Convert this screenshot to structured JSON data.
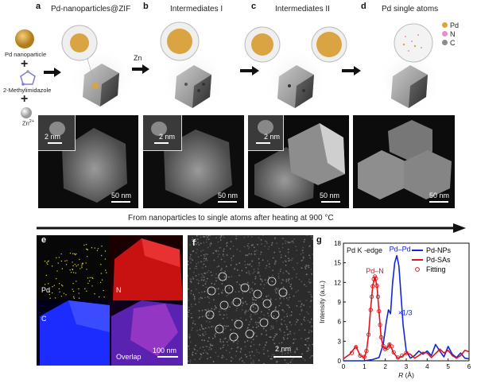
{
  "panels": {
    "a": {
      "letter": "a",
      "title": "Pd-nanoparticles@ZIF"
    },
    "b": {
      "letter": "b",
      "title": "Intermediates I"
    },
    "c": {
      "letter": "c",
      "title": "Intermediates II"
    },
    "d": {
      "letter": "d",
      "title": "Pd single atoms"
    },
    "e": {
      "letter": "e"
    },
    "f": {
      "letter": "f"
    },
    "g": {
      "letter": "g"
    }
  },
  "synthesis": {
    "nanoparticle": "Pd nanoparticle",
    "plus": "+",
    "linker": "2-Methylimidazole",
    "zn_ion": "Zn",
    "zn_ion_sup": "2+",
    "zn_label": "Zn"
  },
  "legend_top": [
    {
      "label": "Pd",
      "color": "#d9a441"
    },
    {
      "label": "N",
      "color": "#e88fc6"
    },
    {
      "label": "C",
      "color": "#8c8c8c"
    }
  ],
  "micrographs": {
    "inset_scale": "2 nm",
    "main_scale": "50 nm"
  },
  "arrow_caption": "From nanoparticles to single atoms after heating at 900 °C",
  "eds": {
    "tiles": [
      "Pd",
      "N",
      "C",
      "Overlap"
    ],
    "scale": "100 nm",
    "colors": {
      "Pd": "#d4d23c",
      "N": "#e01616",
      "C": "#1a2cff",
      "Overlap": "#8a3cc0"
    }
  },
  "haadf_scale": "2 nm",
  "chart_data": {
    "type": "line",
    "title": "Pd K -edge",
    "xlabel": "R (Å)",
    "ylabel": "Intensity (a.u.)",
    "xlim": [
      0,
      6
    ],
    "ylim": [
      0,
      18
    ],
    "xticks": [
      "0",
      "1",
      "2",
      "3",
      "4",
      "5",
      "6"
    ],
    "yticks": [
      "0",
      "3",
      "6",
      "9",
      "12",
      "15",
      "18"
    ],
    "annotations": [
      {
        "text": "Pd–Pd",
        "x": 2.7,
        "y": 16.7,
        "color": "#1426d4"
      },
      {
        "text": "Pd–N",
        "x": 1.5,
        "y": 13.4,
        "color": "#e0141c"
      },
      {
        "text": "×1/3",
        "x": 2.95,
        "y": 7.0,
        "color": "#1426d4"
      }
    ],
    "series": [
      {
        "name": "Pd-NPs",
        "color": "#1426d4",
        "style": "line",
        "x": [
          0,
          0.5,
          1.0,
          1.4,
          1.7,
          1.9,
          2.05,
          2.15,
          2.25,
          2.35,
          2.45,
          2.55,
          2.65,
          2.75,
          2.85,
          3.0,
          3.2,
          3.4,
          3.6,
          3.8,
          4.0,
          4.2,
          4.4,
          4.6,
          4.8,
          5.0,
          5.2,
          5.4,
          5.6,
          5.8,
          6.0
        ],
        "y": [
          0,
          0,
          0,
          0.2,
          0.5,
          2.5,
          6.0,
          7.8,
          7.2,
          12.0,
          15.0,
          16.1,
          14.5,
          10.0,
          5.5,
          1.5,
          0.4,
          0.8,
          1.5,
          1.0,
          1.5,
          0.8,
          2.5,
          1.5,
          0.6,
          2.2,
          1.0,
          0.5,
          1.2,
          0.4,
          0.3
        ]
      },
      {
        "name": "Pd-SAs",
        "color": "#e0141c",
        "style": "line",
        "x": [
          0,
          0.3,
          0.6,
          0.8,
          1.0,
          1.1,
          1.2,
          1.3,
          1.4,
          1.5,
          1.6,
          1.7,
          1.8,
          1.9,
          2.0,
          2.1,
          2.2,
          2.4,
          2.6,
          2.8,
          3.0,
          3.2,
          3.4,
          3.6,
          3.8,
          4.0,
          4.2,
          4.4,
          4.6,
          4.8,
          5.0,
          5.2,
          5.4,
          5.6,
          5.8,
          6.0
        ],
        "y": [
          0.3,
          1.0,
          2.2,
          0.8,
          0.5,
          1.5,
          4.0,
          8.0,
          11.5,
          12.9,
          11.5,
          7.5,
          3.5,
          2.2,
          1.8,
          2.0,
          2.6,
          1.2,
          0.4,
          0.7,
          1.2,
          1.0,
          0.4,
          0.8,
          1.3,
          1.2,
          0.5,
          1.1,
          1.8,
          1.2,
          1.6,
          0.8,
          0.4,
          0.8,
          1.6,
          1.4
        ]
      },
      {
        "name": "Fitting",
        "color": "#e0141c",
        "style": "markers",
        "x": [
          0.4,
          0.6,
          0.8,
          1.0,
          1.1,
          1.2,
          1.3,
          1.35,
          1.4,
          1.45,
          1.5,
          1.55,
          1.6,
          1.65,
          1.7,
          1.75,
          1.8,
          1.9,
          2.0,
          2.1,
          2.2,
          2.3,
          2.4,
          2.6,
          2.8,
          3.0
        ],
        "y": [
          1.2,
          2.1,
          0.8,
          0.6,
          1.5,
          4.0,
          7.8,
          9.8,
          11.4,
          12.5,
          12.9,
          12.6,
          11.5,
          9.8,
          7.6,
          5.5,
          3.6,
          2.3,
          1.8,
          2.0,
          2.5,
          2.2,
          1.3,
          0.5,
          0.8,
          1.2
        ]
      }
    ]
  }
}
